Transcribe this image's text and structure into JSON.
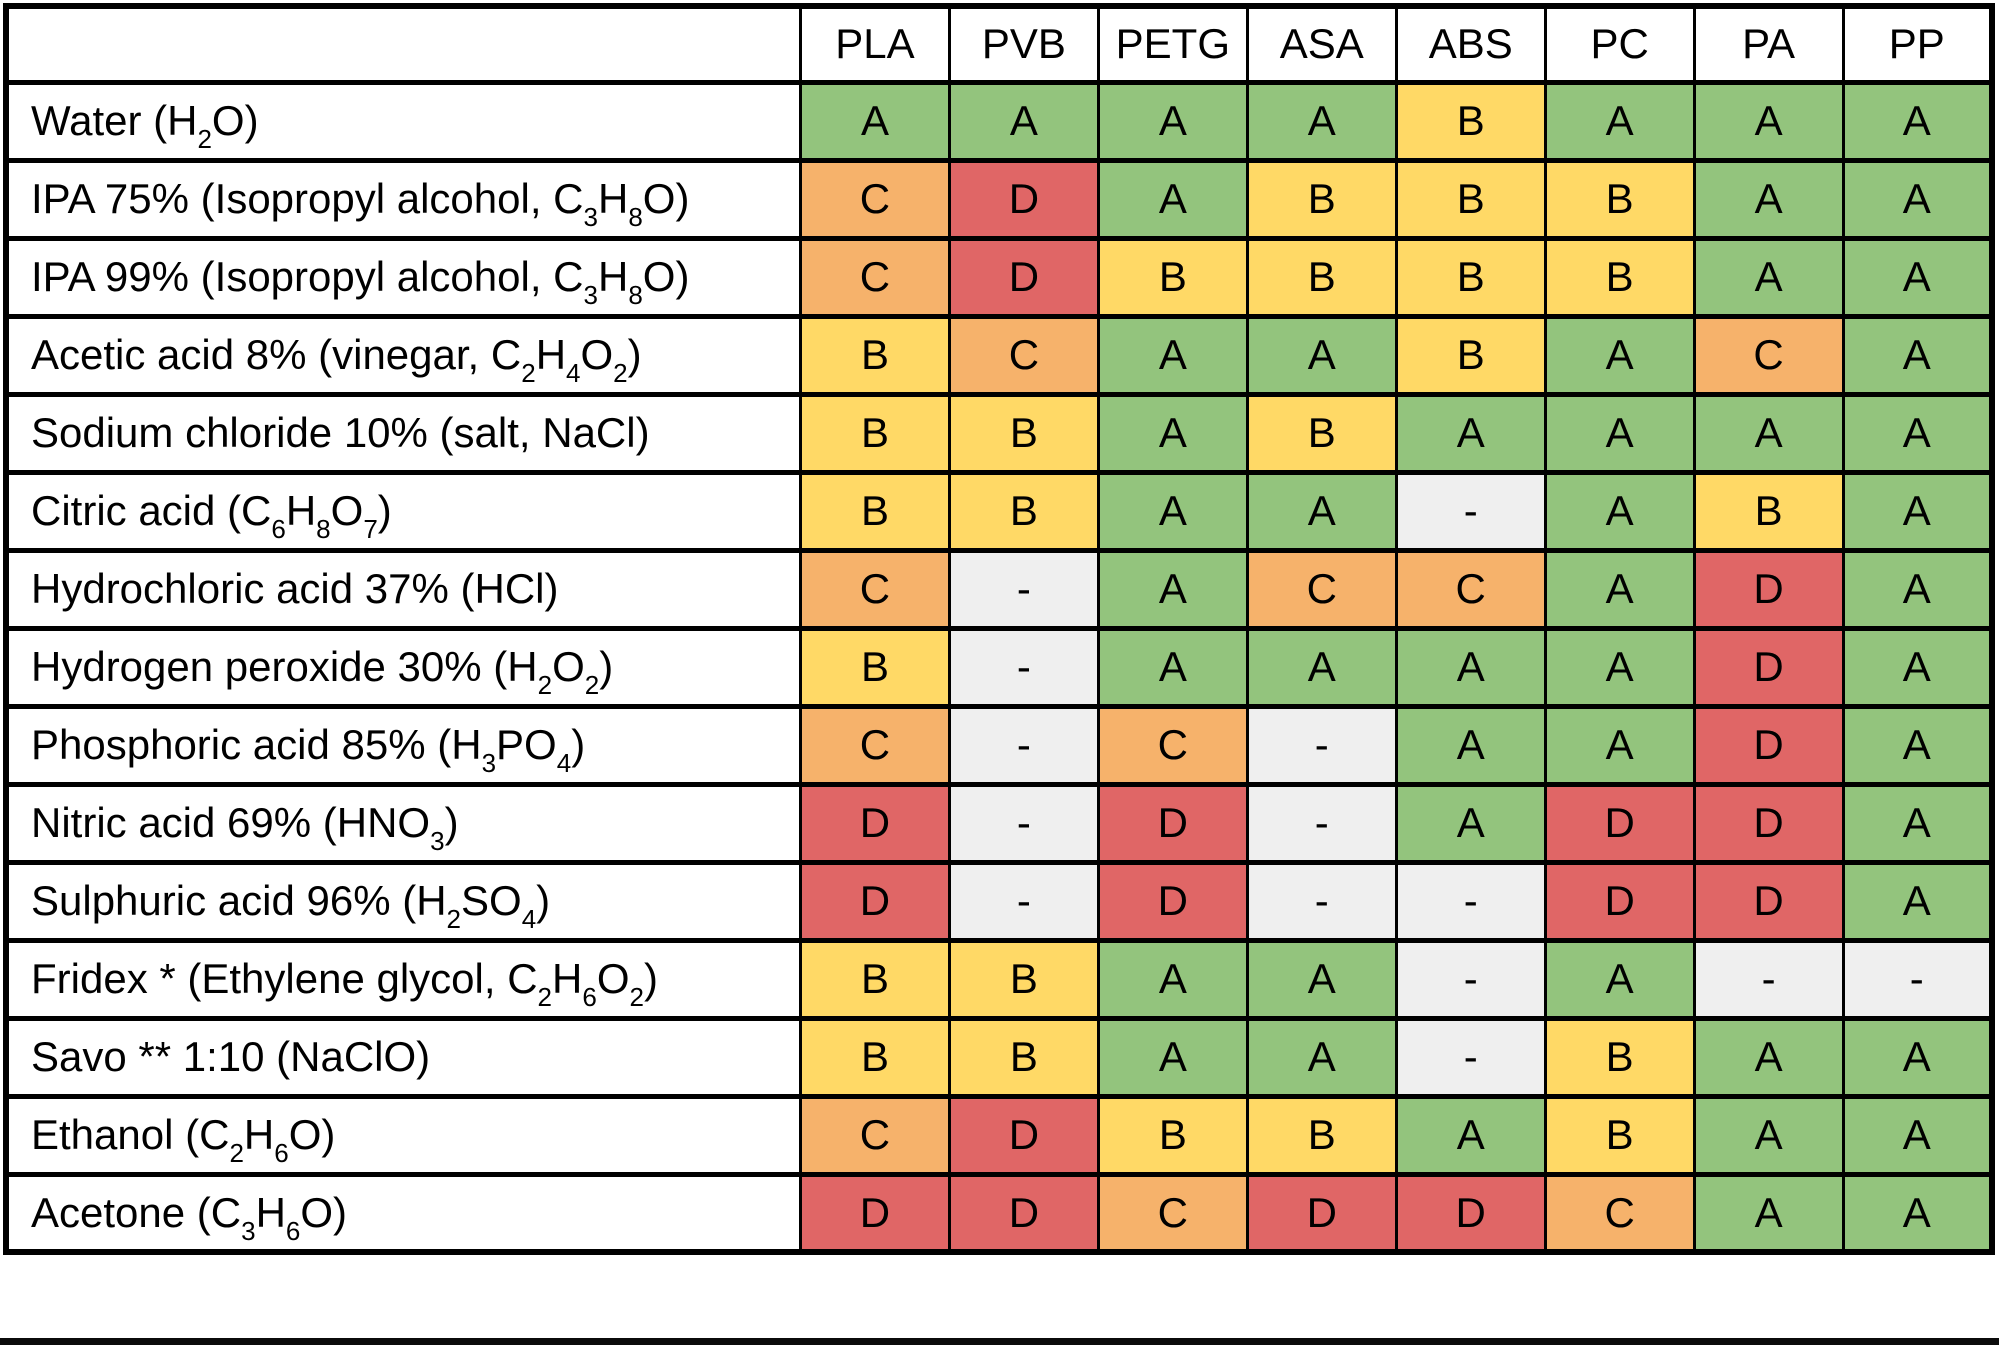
{
  "grade_colors": {
    "A": "#93c47d",
    "B": "#ffd966",
    "C": "#f6b26b",
    "D": "#e06666",
    "-": "#efefef"
  },
  "border_color": "#000000",
  "text_color": "#000000",
  "footer_bar_color": "#0b0b0b",
  "chart_data": {
    "type": "table",
    "columns": [
      "PLA",
      "PVB",
      "PETG",
      "ASA",
      "ABS",
      "PC",
      "PA",
      "PP"
    ],
    "rows": [
      {
        "chemical": "Water (H₂O)",
        "grades": [
          "A",
          "A",
          "A",
          "A",
          "B",
          "A",
          "A",
          "A"
        ]
      },
      {
        "chemical": "IPA 75% (Isopropyl alcohol, C₃H₈O)",
        "grades": [
          "C",
          "D",
          "A",
          "B",
          "B",
          "B",
          "A",
          "A"
        ]
      },
      {
        "chemical": "IPA 99% (Isopropyl alcohol, C₃H₈O)",
        "grades": [
          "C",
          "D",
          "B",
          "B",
          "B",
          "B",
          "A",
          "A"
        ]
      },
      {
        "chemical": "Acetic acid 8% (vinegar, C₂H₄O₂)",
        "grades": [
          "B",
          "C",
          "A",
          "A",
          "B",
          "A",
          "C",
          "A"
        ]
      },
      {
        "chemical": "Sodium chloride 10% (salt, NaCl)",
        "grades": [
          "B",
          "B",
          "A",
          "B",
          "A",
          "A",
          "A",
          "A"
        ]
      },
      {
        "chemical": "Citric acid (C₆H₈O₇)",
        "grades": [
          "B",
          "B",
          "A",
          "A",
          "-",
          "A",
          "B",
          "A"
        ]
      },
      {
        "chemical": "Hydrochloric acid 37% (HCl)",
        "grades": [
          "C",
          "-",
          "A",
          "C",
          "C",
          "A",
          "D",
          "A"
        ]
      },
      {
        "chemical": "Hydrogen peroxide 30% (H₂O₂)",
        "grades": [
          "B",
          "-",
          "A",
          "A",
          "A",
          "A",
          "D",
          "A"
        ]
      },
      {
        "chemical": "Phosphoric acid 85% (H₃PO₄)",
        "grades": [
          "C",
          "-",
          "C",
          "-",
          "A",
          "A",
          "D",
          "A"
        ]
      },
      {
        "chemical": "Nitric acid 69% (HNO₃)",
        "grades": [
          "D",
          "-",
          "D",
          "-",
          "A",
          "D",
          "D",
          "A"
        ]
      },
      {
        "chemical": "Sulphuric acid 96% (H₂SO₄)",
        "grades": [
          "D",
          "-",
          "D",
          "-",
          "-",
          "D",
          "D",
          "A"
        ]
      },
      {
        "chemical": "Fridex * (Ethylene glycol, C₂H₆O₂)",
        "grades": [
          "B",
          "B",
          "A",
          "A",
          "-",
          "A",
          "-",
          "-"
        ]
      },
      {
        "chemical": "Savo ** 1:10 (NaClO)",
        "grades": [
          "B",
          "B",
          "A",
          "A",
          "-",
          "B",
          "A",
          "A"
        ]
      },
      {
        "chemical": "Ethanol (C₂H₆O)",
        "grades": [
          "C",
          "D",
          "B",
          "B",
          "A",
          "B",
          "A",
          "A"
        ]
      },
      {
        "chemical": "Acetone (C₃H₆O)",
        "grades": [
          "D",
          "D",
          "C",
          "D",
          "D",
          "C",
          "A",
          "A"
        ]
      }
    ]
  }
}
